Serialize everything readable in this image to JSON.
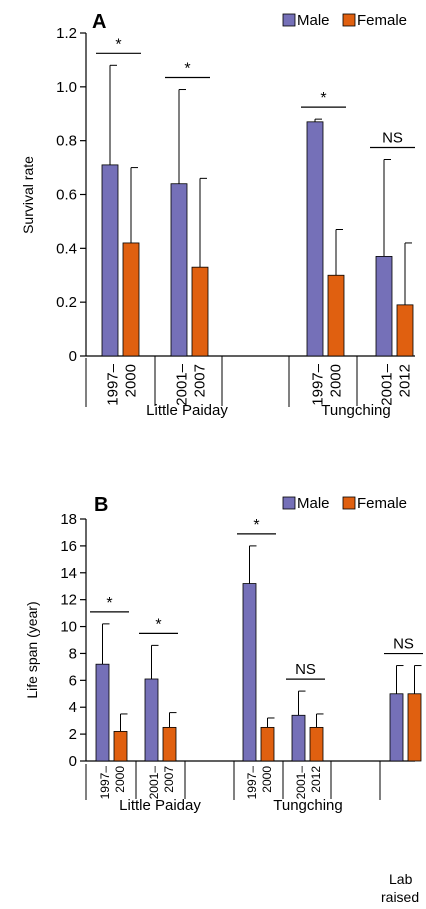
{
  "chart_data": [
    {
      "type": "bar",
      "panel_label": "A",
      "ylabel": "Survival rate",
      "ylim": [
        0,
        1.2
      ],
      "yticks": [
        "0",
        "0.2",
        "0.4",
        "0.6",
        "0.8",
        "1.0",
        "1.2"
      ],
      "legend": [
        {
          "name": "Male",
          "color": "#7570b8"
        },
        {
          "name": "Female",
          "color": "#e06010"
        }
      ],
      "groups": [
        {
          "period": [
            "1997–",
            "2000"
          ],
          "male": 0.71,
          "male_err": 0.37,
          "female": 0.42,
          "female_err": 0.28,
          "sig": "*"
        },
        {
          "period": [
            "2001–",
            "2007"
          ],
          "male": 0.64,
          "male_err": 0.35,
          "female": 0.33,
          "female_err": 0.33,
          "sig": "*"
        },
        {
          "period": [
            "1997–",
            "2000"
          ],
          "male": 0.87,
          "male_err": 0.01,
          "female": 0.3,
          "female_err": 0.17,
          "sig": "*"
        },
        {
          "period": [
            "2001–",
            "2012"
          ],
          "male": 0.37,
          "male_err": 0.36,
          "female": 0.19,
          "female_err": 0.23,
          "sig": "NS"
        }
      ],
      "sites": [
        "Little Paiday",
        "Tungching"
      ]
    },
    {
      "type": "bar",
      "panel_label": "B",
      "ylabel": "Life span (year)",
      "ylim": [
        0,
        18
      ],
      "yticks": [
        "0",
        "2",
        "4",
        "6",
        "8",
        "10",
        "12",
        "14",
        "16",
        "18"
      ],
      "legend": [
        {
          "name": "Male",
          "color": "#7570b8"
        },
        {
          "name": "Female",
          "color": "#e06010"
        }
      ],
      "groups": [
        {
          "period": [
            "1997–",
            "2000"
          ],
          "male": 7.2,
          "male_err": 3.0,
          "female": 2.2,
          "female_err": 1.3,
          "sig": "*"
        },
        {
          "period": [
            "2001–",
            "2007"
          ],
          "male": 6.1,
          "male_err": 2.5,
          "female": 2.5,
          "female_err": 1.1,
          "sig": "*"
        },
        {
          "period": [
            "1997–",
            "2000"
          ],
          "male": 13.2,
          "male_err": 2.8,
          "female": 2.5,
          "female_err": 0.7,
          "sig": "*"
        },
        {
          "period": [
            "2001–",
            "2012"
          ],
          "male": 3.4,
          "male_err": 1.8,
          "female": 2.5,
          "female_err": 1.0,
          "sig": "NS"
        },
        {
          "period": [],
          "male": 5.0,
          "male_err": 2.1,
          "female": 5.0,
          "female_err": 2.1,
          "sig": "NS"
        }
      ],
      "sites": [
        "Little Paiday",
        "Tungching",
        "Lab",
        "raised"
      ]
    }
  ]
}
